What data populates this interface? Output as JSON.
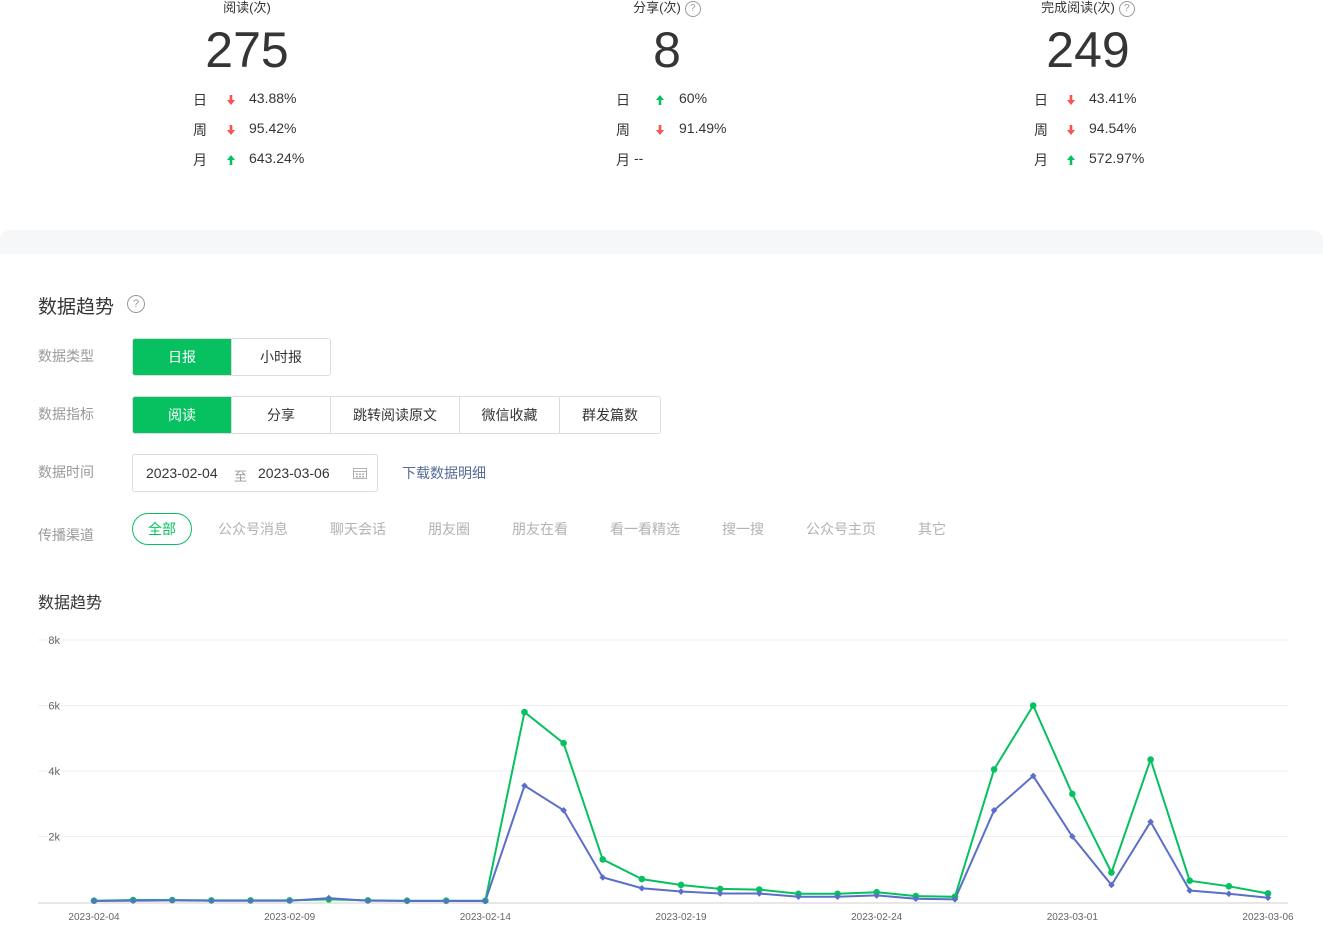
{
  "stats": [
    {
      "title": "阅读(次)",
      "has_help": false,
      "value": "275",
      "rows": [
        {
          "label": "日",
          "direction": "down",
          "value": "43.88%"
        },
        {
          "label": "周",
          "direction": "down",
          "value": "95.42%"
        },
        {
          "label": "月",
          "direction": "up",
          "value": "643.24%"
        }
      ]
    },
    {
      "title": "分享(次)",
      "has_help": true,
      "value": "8",
      "rows": [
        {
          "label": "日",
          "direction": "up",
          "value": "60%"
        },
        {
          "label": "周",
          "direction": "down",
          "value": "91.49%"
        },
        {
          "label": "月",
          "direction": "none",
          "value": "--"
        }
      ]
    },
    {
      "title": "完成阅读(次)",
      "has_help": true,
      "value": "249",
      "rows": [
        {
          "label": "日",
          "direction": "down",
          "value": "43.41%"
        },
        {
          "label": "周",
          "direction": "down",
          "value": "94.54%"
        },
        {
          "label": "月",
          "direction": "up",
          "value": "572.97%"
        }
      ]
    }
  ],
  "trend": {
    "title": "数据趋势",
    "help_glyph": "?",
    "data_type": {
      "label": "数据类型",
      "options": [
        "日报",
        "小时报"
      ],
      "selected": "日报"
    },
    "metric": {
      "label": "数据指标",
      "options": [
        "阅读",
        "分享",
        "跳转阅读原文",
        "微信收藏",
        "群发篇数"
      ],
      "selected": "阅读"
    },
    "time": {
      "label": "数据时间",
      "start": "2023-02-04",
      "separator": "至",
      "end": "2023-03-06",
      "download_label": "下载数据明细"
    },
    "channel": {
      "label": "传播渠道",
      "options": [
        "全部",
        "公众号消息",
        "聊天会话",
        "朋友圈",
        "朋友在看",
        "看一看精选",
        "搜一搜",
        "公众号主页",
        "其它"
      ],
      "selected": "全部"
    },
    "chart_title": "数据趋势"
  },
  "colors": {
    "accent": "#07c160",
    "down_arrow": "#fa5151",
    "up_arrow": "#07c160",
    "series_green": "#07c160",
    "series_blue": "#5b6fc8",
    "link": "#576b95"
  },
  "chart_data": {
    "type": "line",
    "x": [
      "2023-02-04",
      "2023-02-05",
      "2023-02-06",
      "2023-02-07",
      "2023-02-08",
      "2023-02-09",
      "2023-02-10",
      "2023-02-11",
      "2023-02-12",
      "2023-02-13",
      "2023-02-14",
      "2023-02-15",
      "2023-02-16",
      "2023-02-17",
      "2023-02-18",
      "2023-02-19",
      "2023-02-20",
      "2023-02-21",
      "2023-02-22",
      "2023-02-23",
      "2023-02-24",
      "2023-02-25",
      "2023-02-26",
      "2023-02-27",
      "2023-02-28",
      "2023-03-01",
      "2023-03-02",
      "2023-03-03",
      "2023-03-04",
      "2023-03-05",
      "2023-03-06"
    ],
    "x_tick_labels": [
      "2023-02-04",
      "2023-02-09",
      "2023-02-14",
      "2023-02-19",
      "2023-02-24",
      "2023-03-01",
      "2023-03-06"
    ],
    "series": [
      {
        "values": [
          40,
          60,
          60,
          50,
          50,
          50,
          80,
          50,
          40,
          40,
          40,
          5800,
          4850,
          1300,
          700,
          520,
          400,
          380,
          250,
          250,
          300,
          180,
          160,
          4050,
          6000,
          3300,
          900,
          4350,
          650,
          480,
          260
        ]
      },
      {
        "values": [
          30,
          40,
          50,
          40,
          40,
          40,
          120,
          40,
          30,
          30,
          30,
          3550,
          2800,
          750,
          420,
          320,
          260,
          260,
          160,
          160,
          200,
          100,
          80,
          2800,
          3850,
          2000,
          520,
          2450,
          350,
          250,
          130
        ]
      }
    ],
    "y_ticks": [
      "2k",
      "4k",
      "6k",
      "8k"
    ],
    "ylim": [
      0,
      8000
    ],
    "grid": true,
    "xlabel": "",
    "ylabel": ""
  }
}
